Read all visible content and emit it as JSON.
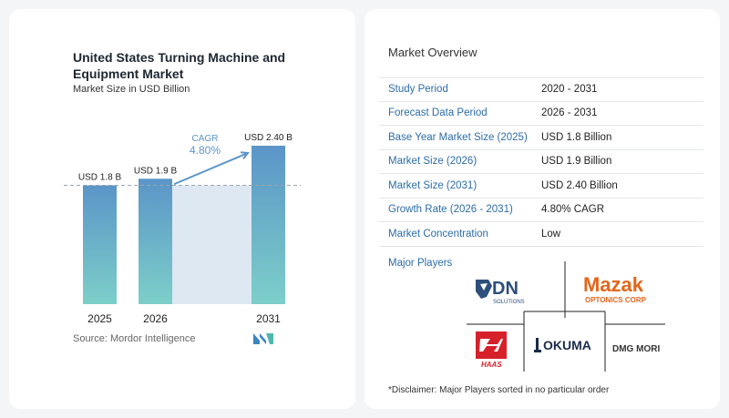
{
  "chart": {
    "title": "United States Turning Machine and Equipment Market",
    "subtitle": "Market Size in USD Billion",
    "source": "Source:  Mordor Intelligence",
    "cagr_label": "CAGR",
    "cagr_value": "4.80%"
  },
  "chart_data": {
    "type": "bar",
    "categories": [
      "2025",
      "2026",
      "2031"
    ],
    "values": [
      1.8,
      1.9,
      2.4
    ],
    "data_labels": [
      "USD 1.8 B",
      "USD 1.9 B",
      "USD 2.40 B"
    ],
    "title": "United States Turning Machine and Equipment Market",
    "subtitle": "Market Size in USD Billion",
    "xlabel": "",
    "ylabel": "",
    "ylim": [
      0,
      2.4
    ],
    "grid": false,
    "legend": "none",
    "colors": {
      "bar_top": "#5b95c8",
      "bar_bottom": "#7ccfc9",
      "shade": "#dde8f2",
      "dashed": "#9aa4ad"
    }
  },
  "overview": {
    "title": "Market Overview",
    "rows": [
      {
        "label": "Study Period",
        "value": "2020 - 2031"
      },
      {
        "label": "Forecast Data Period",
        "value": "2026 - 2031"
      },
      {
        "label": "Base Year Market Size (2025)",
        "value": "USD 1.8 Billion"
      },
      {
        "label": "Market Size (2026)",
        "value": "USD 1.9 Billion"
      },
      {
        "label": "Market Size (2031)",
        "value": "USD 2.40 Billion"
      },
      {
        "label": "Growth Rate (2026 - 2031)",
        "value": "4.80% CAGR"
      },
      {
        "label": "Market Concentration",
        "value": "Low"
      }
    ]
  },
  "players": {
    "title": "Major Players",
    "logos": [
      "DN SOLUTIONS",
      "Mazak OPTONICS CORP",
      "HAAS",
      "OKUMA",
      "DMG MORI"
    ],
    "dn_main": "DN",
    "dn_sub": "SOLUTIONS",
    "mazak_main": "Mazak",
    "mazak_sub": "OPTONICS CORP",
    "haas": "HAAS",
    "okuma": "OKUMA",
    "dmg": "DMG MORI"
  },
  "disclaimer": "*Disclaimer: Major Players sorted in no particular order"
}
